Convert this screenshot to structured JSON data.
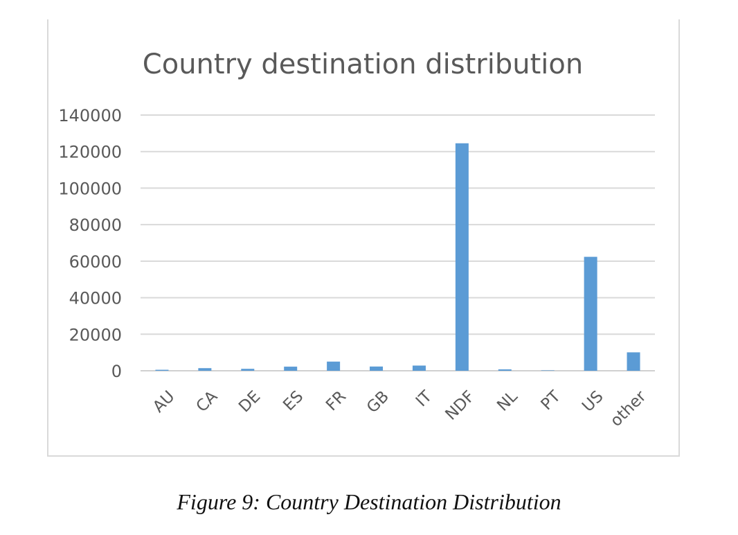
{
  "chart_data": {
    "type": "bar",
    "title": "Country destination distribution",
    "categories": [
      "AU",
      "CA",
      "DE",
      "ES",
      "FR",
      "GB",
      "IT",
      "NDF",
      "NL",
      "PT",
      "US",
      "other"
    ],
    "values": [
      540,
      1430,
      1060,
      2250,
      5020,
      2320,
      2840,
      124540,
      760,
      220,
      62380,
      10090
    ],
    "yticks": [
      0,
      20000,
      40000,
      60000,
      80000,
      100000,
      120000,
      140000
    ],
    "ylim": [
      0,
      140000
    ],
    "bar_color": "#5b9bd5",
    "grid": true,
    "legend": "none"
  },
  "caption": "Figure 9: Country Destination Distribution"
}
